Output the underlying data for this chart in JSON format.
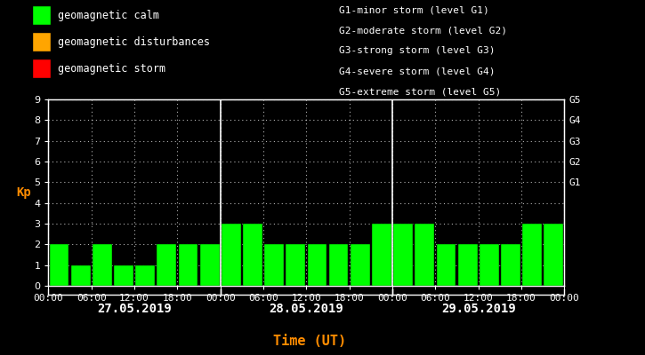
{
  "background_color": "#000000",
  "bar_color_calm": "#00ff00",
  "bar_color_disturbance": "#ffa500",
  "bar_color_storm": "#ff0000",
  "ylabel": "Kp",
  "xlabel": "Time (UT)",
  "ylabel_color": "#ff8c00",
  "xlabel_color": "#ff8c00",
  "tick_color": "#ffffff",
  "axis_color": "#ffffff",
  "grid_color": "#ffffff",
  "days": [
    "27.05.2019",
    "28.05.2019",
    "29.05.2019"
  ],
  "kp_values": [
    [
      2,
      1,
      2,
      1,
      1,
      2,
      2,
      2
    ],
    [
      3,
      3,
      2,
      2,
      2,
      2,
      2,
      3
    ],
    [
      3,
      3,
      2,
      2,
      2,
      2,
      3,
      3
    ]
  ],
  "ylim": [
    0,
    9
  ],
  "yticks": [
    0,
    1,
    2,
    3,
    4,
    5,
    6,
    7,
    8,
    9
  ],
  "right_labels": [
    [
      5.0,
      "G1"
    ],
    [
      6.0,
      "G2"
    ],
    [
      7.0,
      "G3"
    ],
    [
      8.0,
      "G4"
    ],
    [
      9.0,
      "G5"
    ]
  ],
  "legend_items": [
    {
      "color": "#00ff00",
      "label": "geomagnetic calm"
    },
    {
      "color": "#ffa500",
      "label": "geomagnetic disturbances"
    },
    {
      "color": "#ff0000",
      "label": "geomagnetic storm"
    }
  ],
  "right_legend_text": [
    "G1-minor storm (level G1)",
    "G2-moderate storm (level G2)",
    "G3-strong storm (level G3)",
    "G4-severe storm (level G4)",
    "G5-extreme storm (level G5)"
  ],
  "font_family": "monospace",
  "font_size": 8,
  "bar_width": 0.9
}
